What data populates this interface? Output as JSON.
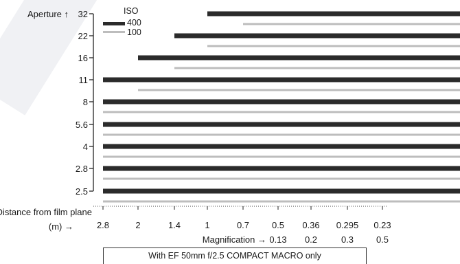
{
  "chart_data": {
    "type": "bar",
    "orientation": "horizontal",
    "y_axis": {
      "label": "Aperture ↑",
      "categories": [
        "32",
        "22",
        "16",
        "11",
        "8",
        "5.6",
        "4",
        "2.8",
        "2.5"
      ]
    },
    "x_axis": {
      "label_distance": "Distance from film plane (m) →",
      "distance_ticks": [
        "2.8",
        "2",
        "1.4",
        "1",
        "0.7",
        "0.5",
        "0.36",
        "0.295",
        "0.23"
      ],
      "label_magnification": "Magnification →",
      "magnification_ticks": [
        "0.13",
        "0.2",
        "0.3",
        "0.5"
      ]
    },
    "legend": {
      "title": "ISO",
      "position": "top-left",
      "entries": [
        "400",
        "100"
      ]
    },
    "series": [
      {
        "name": "400",
        "start_distance": [
          "1",
          "1.4",
          "2",
          "2.8",
          "2.8",
          "2.8",
          "2.8",
          "2.8",
          "2.8"
        ]
      },
      {
        "name": "100",
        "start_distance": [
          "0.7",
          "1",
          "1.4",
          "2",
          "2.8",
          "2.8",
          "2.8",
          "2.8",
          "2.8"
        ]
      }
    ],
    "note": "With EF 50mm f/2.5 COMPACT MACRO only"
  }
}
